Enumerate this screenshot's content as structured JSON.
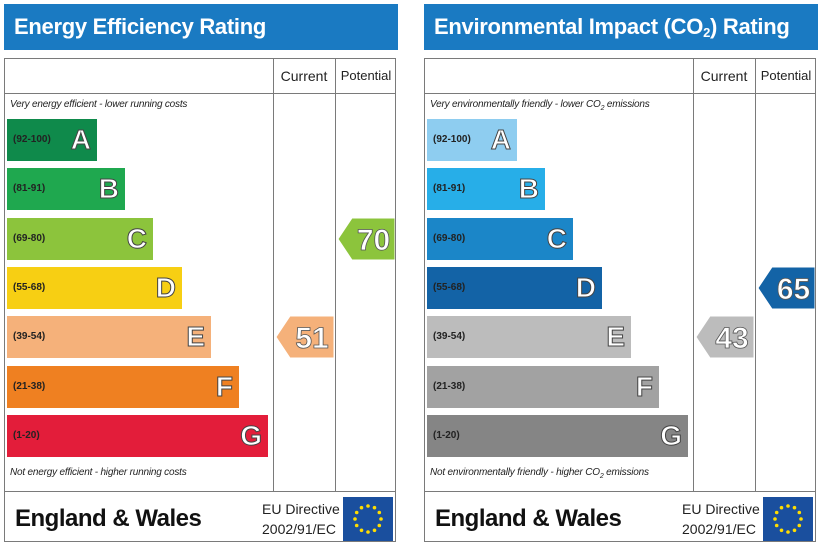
{
  "chart_data": [
    {
      "type": "bar",
      "title": "Energy Efficiency Rating",
      "columns": [
        "Current",
        "Potential"
      ],
      "top_note": "Very energy efficient - lower running costs",
      "bottom_note": "Not energy efficient - higher running costs",
      "categories": [
        "A",
        "B",
        "C",
        "D",
        "E",
        "F",
        "G"
      ],
      "ranges": [
        "(92-100)",
        "(81-91)",
        "(69-80)",
        "(55-68)",
        "(39-54)",
        "(21-38)",
        "(1-20)"
      ],
      "band_colors": [
        "#0f8a4b",
        "#1fa84f",
        "#8cc43c",
        "#f7cf13",
        "#f5b17a",
        "#ef8021",
        "#e31d3a"
      ],
      "current": 51,
      "current_band": "E",
      "current_color": "#f5b17a",
      "potential": 70,
      "potential_band": "C",
      "potential_color": "#8cc43c",
      "footer": {
        "country": "England & Wales",
        "directive_line1": "EU Directive",
        "directive_line2": "2002/91/EC"
      }
    },
    {
      "type": "bar",
      "title": "Environmental Impact (CO",
      "title_sub": "2",
      "title_end": ") Rating",
      "columns": [
        "Current",
        "Potential"
      ],
      "top_note": "Very environmentally friendly - lower CO",
      "top_note_sub": "2",
      "top_note_end": " emissions",
      "bottom_note": "Not environmentally friendly - higher CO",
      "bottom_note_sub": "2",
      "bottom_note_end": " emissions",
      "categories": [
        "A",
        "B",
        "C",
        "D",
        "E",
        "F",
        "G"
      ],
      "ranges": [
        "(92-100)",
        "(81-91)",
        "(69-80)",
        "(55-68)",
        "(39-54)",
        "(21-38)",
        "(1-20)"
      ],
      "band_colors": [
        "#8ecdf0",
        "#27aee8",
        "#1b86c8",
        "#1363a6",
        "#bcbcbc",
        "#a2a2a2",
        "#858585"
      ],
      "current": 43,
      "current_band": "E",
      "current_color": "#bcbcbc",
      "potential": 65,
      "potential_band": "D",
      "potential_color": "#1363a6",
      "footer": {
        "country": "England & Wales",
        "directive_line1": "EU Directive",
        "directive_line2": "2002/91/EC"
      }
    }
  ]
}
